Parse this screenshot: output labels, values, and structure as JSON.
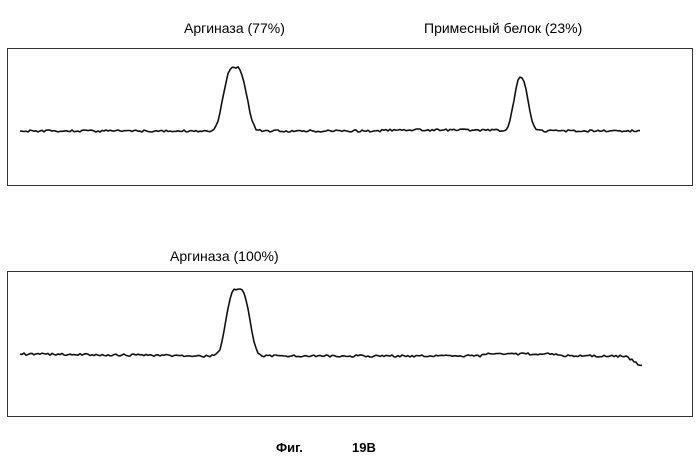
{
  "chart_data": [
    {
      "type": "line",
      "peaks": [
        {
          "label": "Аргиназа (77%)",
          "percent": 77
        },
        {
          "label": "Примесный белок (23%)",
          "percent": 23
        }
      ]
    },
    {
      "type": "line",
      "peaks": [
        {
          "label": "Аргиназа (100%)",
          "percent": 100
        }
      ]
    }
  ],
  "caption": {
    "prefix": "Фиг.",
    "number": "19B"
  }
}
